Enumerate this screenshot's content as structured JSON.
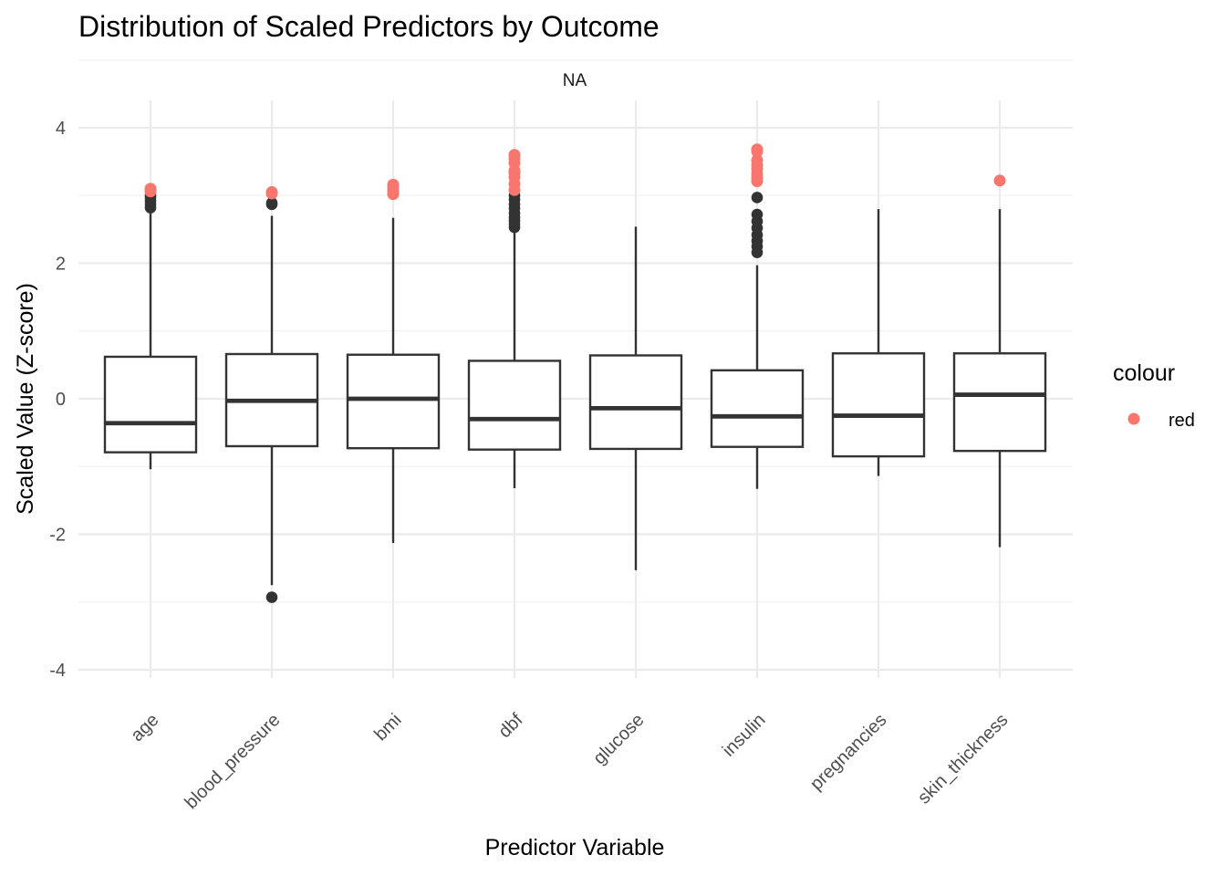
{
  "chart_data": {
    "type": "boxplot",
    "title": "Distribution of Scaled Predictors by Outcome",
    "facet_label": "NA",
    "xlabel": "Predictor Variable",
    "ylabel": "Scaled Value (Z-score)",
    "ylim": [
      -4.4,
      4.4
    ],
    "yticks": [
      -4,
      -2,
      0,
      2,
      4
    ],
    "grid": true,
    "legend": {
      "title": "colour",
      "placement": "right",
      "entries": [
        {
          "label": "red",
          "color": "#F8766D"
        }
      ]
    },
    "colors": {
      "box": "#333333",
      "highlight": "#F8766D",
      "grid": "#ebebeb"
    },
    "categories": [
      "age",
      "blood_pressure",
      "bmi",
      "dbf",
      "glucose",
      "insulin",
      "pregnancies",
      "skin_thickness"
    ],
    "boxes": [
      {
        "name": "age",
        "q1": -0.79,
        "median": -0.36,
        "q3": 0.62,
        "whisker_low": -1.04,
        "whisker_high": 2.77,
        "outliers": [
          2.82,
          2.87,
          2.92,
          2.97,
          3.0
        ],
        "highlight_points": [
          3.06,
          3.1
        ]
      },
      {
        "name": "blood_pressure",
        "q1": -0.7,
        "median": -0.03,
        "q3": 0.66,
        "whisker_low": -2.75,
        "whisker_high": 2.7,
        "outliers": [
          2.87,
          2.89,
          -2.93
        ],
        "highlight_points": [
          3.03,
          3.05
        ]
      },
      {
        "name": "bmi",
        "q1": -0.73,
        "median": 0.0,
        "q3": 0.65,
        "whisker_low": -2.13,
        "whisker_high": 2.67,
        "outliers": [],
        "highlight_points": [
          3.02,
          3.07,
          3.12,
          3.16
        ]
      },
      {
        "name": "dbf",
        "q1": -0.75,
        "median": -0.3,
        "q3": 0.56,
        "whisker_low": -1.32,
        "whisker_high": 2.48,
        "outliers": [
          2.53,
          2.58,
          2.63,
          2.68,
          2.74,
          2.81,
          2.87,
          2.94,
          3.0
        ],
        "highlight_points": [
          3.08,
          3.17,
          3.27,
          3.33,
          3.37,
          3.48,
          3.55,
          3.6
        ]
      },
      {
        "name": "glucose",
        "q1": -0.74,
        "median": -0.14,
        "q3": 0.64,
        "whisker_low": -2.53,
        "whisker_high": 2.54,
        "outliers": [],
        "highlight_points": []
      },
      {
        "name": "insulin",
        "q1": -0.71,
        "median": -0.26,
        "q3": 0.42,
        "whisker_low": -1.33,
        "whisker_high": 1.97,
        "outliers": [
          2.16,
          2.25,
          2.33,
          2.42,
          2.52,
          2.62,
          2.72,
          2.97
        ],
        "highlight_points": [
          3.21,
          3.26,
          3.32,
          3.39,
          3.45,
          3.52,
          3.65,
          3.68
        ]
      },
      {
        "name": "pregnancies",
        "q1": -0.85,
        "median": -0.25,
        "q3": 0.67,
        "whisker_low": -1.14,
        "whisker_high": 2.8,
        "outliers": [],
        "highlight_points": []
      },
      {
        "name": "skin_thickness",
        "q1": -0.77,
        "median": 0.06,
        "q3": 0.67,
        "whisker_low": -2.19,
        "whisker_high": 2.8,
        "outliers": [],
        "highlight_points": [
          3.22
        ]
      }
    ]
  }
}
